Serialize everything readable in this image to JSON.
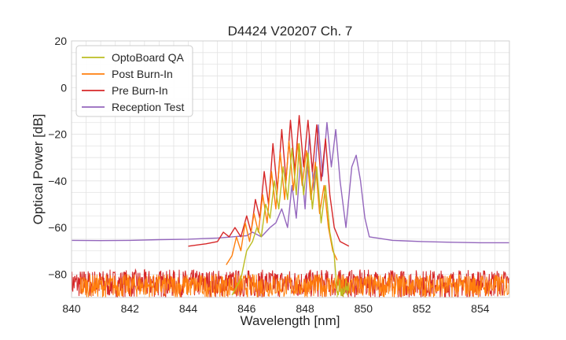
{
  "chart_data": {
    "type": "line",
    "title": "D4424 V20207 Ch. 7",
    "xlabel": "Wavelength [nm]",
    "ylabel": "Optical Power [dB]",
    "xlim": [
      840,
      855
    ],
    "ylim": [
      -90,
      20
    ],
    "xticks": [
      "840",
      "842",
      "844",
      "846",
      "848",
      "850",
      "852",
      "854"
    ],
    "yticks": [
      "20",
      "0",
      "−20",
      "−40",
      "−60",
      "−80"
    ],
    "grid": true,
    "legend_position": "top-left",
    "series": [
      {
        "name": "OptoBoard QA",
        "color": "#bcbd22",
        "points": [
          [
            845.5,
            -89
          ],
          [
            845.8,
            -82
          ],
          [
            846.0,
            -70
          ],
          [
            846.2,
            -66
          ],
          [
            846.35,
            -60
          ],
          [
            846.5,
            -64
          ],
          [
            846.65,
            -50
          ],
          [
            846.8,
            -56
          ],
          [
            846.95,
            -40
          ],
          [
            847.1,
            -52
          ],
          [
            847.25,
            -34
          ],
          [
            847.4,
            -48
          ],
          [
            847.55,
            -26
          ],
          [
            847.7,
            -46
          ],
          [
            847.8,
            -24
          ],
          [
            847.95,
            -46
          ],
          [
            848.1,
            -28
          ],
          [
            848.25,
            -52
          ],
          [
            848.4,
            -34
          ],
          [
            848.55,
            -58
          ],
          [
            848.7,
            -42
          ],
          [
            848.85,
            -62
          ],
          [
            849.0,
            -72
          ],
          [
            849.1,
            -88
          ]
        ]
      },
      {
        "name": "Post Burn-In",
        "color": "#ff7f0e",
        "points": [
          [
            845.3,
            -76
          ],
          [
            845.5,
            -72
          ],
          [
            845.65,
            -64
          ],
          [
            845.8,
            -70
          ],
          [
            845.95,
            -58
          ],
          [
            846.1,
            -66
          ],
          [
            846.25,
            -54
          ],
          [
            846.4,
            -62
          ],
          [
            846.55,
            -46
          ],
          [
            846.7,
            -58
          ],
          [
            846.85,
            -36
          ],
          [
            847.0,
            -52
          ],
          [
            847.15,
            -28
          ],
          [
            847.3,
            -48
          ],
          [
            847.45,
            -23
          ],
          [
            847.6,
            -44
          ],
          [
            847.75,
            -24
          ],
          [
            847.9,
            -42
          ],
          [
            848.05,
            -27
          ],
          [
            848.2,
            -48
          ],
          [
            848.35,
            -32
          ],
          [
            848.5,
            -54
          ],
          [
            848.65,
            -42
          ],
          [
            848.8,
            -60
          ],
          [
            848.95,
            -70
          ],
          [
            849.1,
            -74
          ]
        ]
      },
      {
        "name": "Pre Burn-In",
        "color": "#d62728",
        "points": [
          [
            844.0,
            -68
          ],
          [
            844.6,
            -67
          ],
          [
            845.0,
            -66
          ],
          [
            845.2,
            -62
          ],
          [
            845.4,
            -64
          ],
          [
            845.6,
            -60
          ],
          [
            845.8,
            -64
          ],
          [
            846.0,
            -55
          ],
          [
            846.15,
            -62
          ],
          [
            846.3,
            -48
          ],
          [
            846.45,
            -56
          ],
          [
            846.6,
            -36
          ],
          [
            846.75,
            -50
          ],
          [
            846.9,
            -24
          ],
          [
            847.05,
            -44
          ],
          [
            847.2,
            -18
          ],
          [
            847.35,
            -40
          ],
          [
            847.5,
            -14
          ],
          [
            847.65,
            -36
          ],
          [
            847.8,
            -12
          ],
          [
            847.95,
            -34
          ],
          [
            848.1,
            -14
          ],
          [
            848.25,
            -36
          ],
          [
            848.4,
            -16
          ],
          [
            848.55,
            -40
          ],
          [
            848.7,
            -22
          ],
          [
            848.85,
            -46
          ],
          [
            849.0,
            -60
          ],
          [
            849.2,
            -66
          ],
          [
            849.5,
            -68
          ]
        ]
      },
      {
        "name": "Reception Test",
        "color": "#9467bd",
        "points": [
          [
            840.0,
            -65.5
          ],
          [
            841.0,
            -65.6
          ],
          [
            842.0,
            -65.5
          ],
          [
            843.0,
            -65.2
          ],
          [
            844.0,
            -65.0
          ],
          [
            845.0,
            -64.5
          ],
          [
            845.5,
            -64.0
          ],
          [
            846.0,
            -63.5
          ],
          [
            846.2,
            -62
          ],
          [
            846.5,
            -64
          ],
          [
            846.8,
            -60
          ],
          [
            847.0,
            -58
          ],
          [
            847.2,
            -52
          ],
          [
            847.4,
            -60
          ],
          [
            847.55,
            -42
          ],
          [
            847.7,
            -56
          ],
          [
            847.85,
            -30
          ],
          [
            848.0,
            -52
          ],
          [
            848.15,
            -20
          ],
          [
            848.3,
            -44
          ],
          [
            848.45,
            -16
          ],
          [
            848.6,
            -38
          ],
          [
            848.75,
            -15
          ],
          [
            848.9,
            -34
          ],
          [
            849.05,
            -18
          ],
          [
            849.2,
            -40
          ],
          [
            849.4,
            -60
          ],
          [
            849.6,
            -34
          ],
          [
            849.75,
            -29
          ],
          [
            849.9,
            -40
          ],
          [
            850.05,
            -56
          ],
          [
            850.2,
            -64
          ],
          [
            851.0,
            -65.5
          ],
          [
            852.0,
            -66.0
          ],
          [
            853.0,
            -66.3
          ],
          [
            854.0,
            -66.5
          ],
          [
            855.0,
            -66.5
          ]
        ]
      }
    ],
    "noise_floor": {
      "Pre Burn-In": {
        "x_from": 840,
        "x_to": 855,
        "y_min": -90,
        "y_max": -78
      },
      "Post Burn-In": {
        "x_from": 840.3,
        "x_to": 855,
        "y_min": -90,
        "y_max": -80
      },
      "OptoBoard QA": {
        "x_from": 849.1,
        "x_to": 849.5,
        "y_min": -90,
        "y_max": -82
      }
    }
  }
}
